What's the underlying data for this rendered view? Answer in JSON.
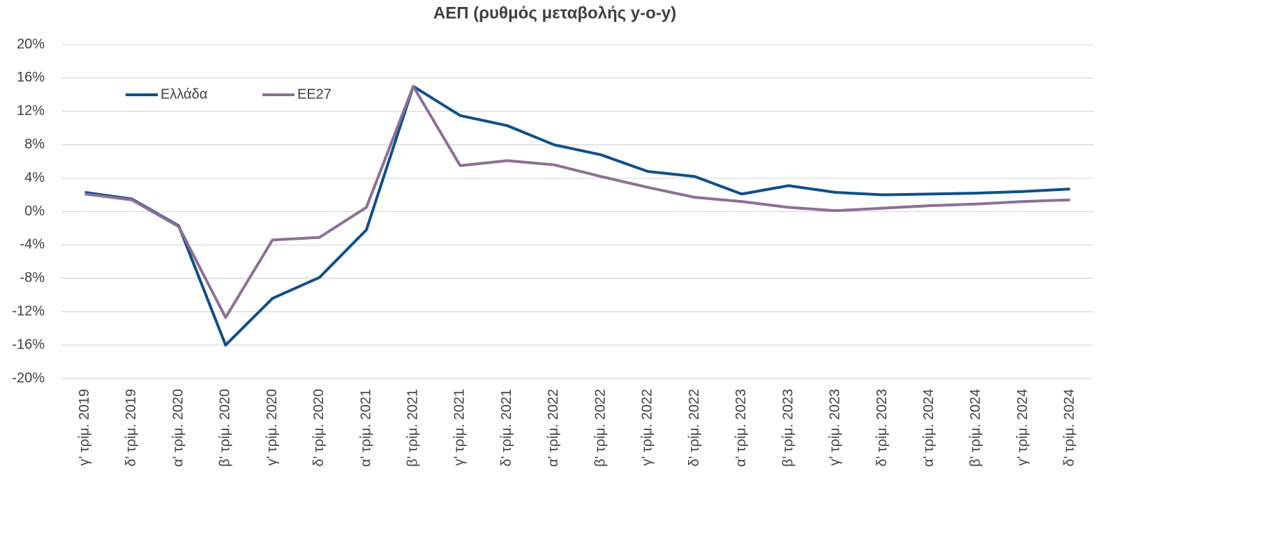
{
  "chart_data": {
    "type": "line",
    "title": "ΑΕΠ (ρυθμός μεταβολής y-o-y)",
    "categories": [
      "γ' τρίμ. 2019",
      "δ' τρίμ. 2019",
      "α' τρίμ. 2020",
      "β' τρίμ. 2020",
      "γ' τρίμ. 2020",
      "δ' τρίμ. 2020",
      "α' τρίμ. 2021",
      "β' τρίμ. 2021",
      "γ' τρίμ. 2021",
      "δ' τρίμ. 2021",
      "α' τρίμ. 2022",
      "β' τρίμ. 2022",
      "γ' τρίμ. 2022",
      "δ' τρίμ. 2022",
      "α' τρίμ. 2023",
      "β' τρίμ. 2023",
      "γ' τρίμ. 2023",
      "δ' τρίμ. 2023",
      "α' τρίμ. 2024",
      "β' τρίμ. 2024",
      "γ' τρίμ. 2024",
      "δ' τρίμ. 2024"
    ],
    "series": [
      {
        "name": "Ελλάδα",
        "color": "#0e4f8a",
        "values": [
          2.3,
          1.5,
          -1.7,
          -16.0,
          -10.4,
          -7.9,
          -2.2,
          15.0,
          11.5,
          10.3,
          8.0,
          6.8,
          4.8,
          4.2,
          2.1,
          3.1,
          2.3,
          2.0,
          2.1,
          2.2,
          2.4,
          2.7
        ]
      },
      {
        "name": "ΕΕ27",
        "color": "#8e6f95",
        "values": [
          2.1,
          1.4,
          -1.8,
          -12.7,
          -3.4,
          -3.1,
          0.5,
          15.0,
          5.5,
          6.1,
          5.6,
          4.2,
          2.9,
          1.7,
          1.2,
          0.5,
          0.1,
          0.4,
          0.7,
          0.9,
          1.2,
          1.4
        ]
      }
    ],
    "ylim": [
      -20,
      20
    ],
    "yticks": [
      {
        "value": -20,
        "label": "-20%"
      },
      {
        "value": -16,
        "label": "-16%"
      },
      {
        "value": -12,
        "label": "-12%"
      },
      {
        "value": -8,
        "label": "-8%"
      },
      {
        "value": -4,
        "label": "-4%"
      },
      {
        "value": 0,
        "label": "0%"
      },
      {
        "value": 4,
        "label": "4%"
      },
      {
        "value": 8,
        "label": "8%"
      },
      {
        "value": 12,
        "label": "12%"
      },
      {
        "value": 16,
        "label": "16%"
      },
      {
        "value": 20,
        "label": "20%"
      }
    ],
    "grid": true,
    "legend": "upper-left"
  }
}
